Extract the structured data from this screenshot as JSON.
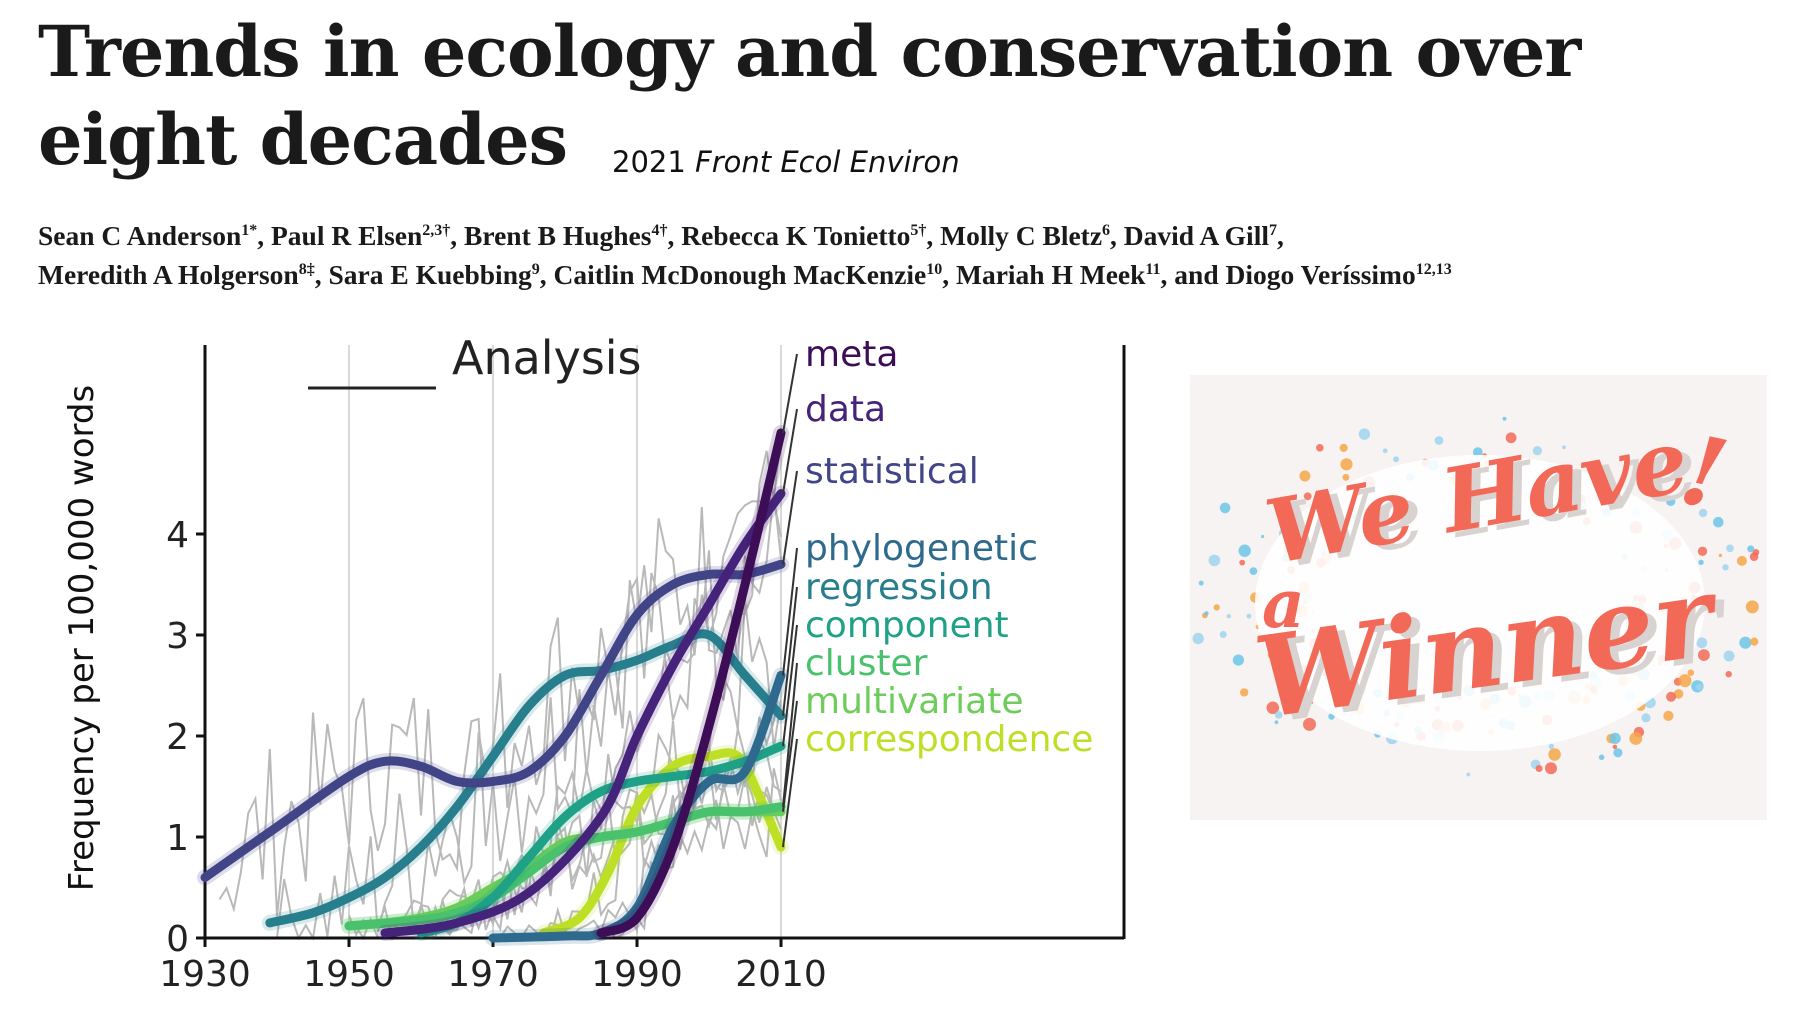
{
  "header": {
    "title": "Trends in ecology and conservation over eight decades",
    "journal_year": "2021",
    "journal_name": "Front Ecol Environ"
  },
  "authors": [
    {
      "name": "Sean C Anderson",
      "sup": "1*"
    },
    {
      "name": "Paul R Elsen",
      "sup": "2,3†"
    },
    {
      "name": "Brent B Hughes",
      "sup": "4†"
    },
    {
      "name": "Rebecca K Tonietto",
      "sup": "5†"
    },
    {
      "name": "Molly C Bletz",
      "sup": "6"
    },
    {
      "name": "David A Gill",
      "sup": "7"
    },
    {
      "name": "Meredith A Holgerson",
      "sup": "8‡"
    },
    {
      "name": "Sara E Kuebbing",
      "sup": "9"
    },
    {
      "name": "Caitlin McDonough MacKenzie",
      "sup": "10"
    },
    {
      "name": "Mariah H Meek",
      "sup": "11"
    },
    {
      "name": "Diogo Veríssimo",
      "sup": "12,13"
    }
  ],
  "badge": {
    "line1": "We Have",
    "line2": "a",
    "line3": "Winner",
    "mark": "!",
    "colors": {
      "text": "#f26a57",
      "shadow": "#d8d2d0",
      "dots": [
        "#f26a57",
        "#6cc5e8",
        "#f4a64a",
        "#9fd3ef"
      ]
    }
  },
  "chart_data": {
    "type": "line",
    "title": "Analysis",
    "xlabel": "",
    "ylabel": "Frequency per 100,000 words",
    "xlim": [
      1930,
      2020
    ],
    "ylim": [
      0,
      5.7
    ],
    "xticks": [
      1930,
      1950,
      1970,
      1990,
      2010
    ],
    "yticks": [
      0,
      1,
      2,
      3,
      4
    ],
    "vertical_grid": [
      1950,
      1970,
      1990,
      2010
    ],
    "legend_placement": "right-end labels",
    "series": [
      {
        "name": "meta",
        "color": "#3d0e57",
        "x": [
          1985,
          1990,
          1995,
          2000,
          2005,
          2010
        ],
        "y": [
          0.05,
          0.2,
          0.9,
          2.1,
          3.5,
          5.0
        ]
      },
      {
        "name": "data",
        "color": "#46237a",
        "x": [
          1955,
          1965,
          1975,
          1985,
          1990,
          1995,
          2000,
          2005,
          2010
        ],
        "y": [
          0.05,
          0.15,
          0.45,
          1.2,
          2.0,
          2.7,
          3.3,
          3.9,
          4.4
        ]
      },
      {
        "name": "statistical",
        "color": "#414487",
        "x": [
          1930,
          1940,
          1950,
          1955,
          1960,
          1965,
          1970,
          1975,
          1980,
          1985,
          1990,
          1995,
          2000,
          2005,
          2010
        ],
        "y": [
          0.6,
          1.1,
          1.6,
          1.75,
          1.7,
          1.55,
          1.55,
          1.65,
          2.0,
          2.6,
          3.2,
          3.5,
          3.6,
          3.6,
          3.7
        ]
      },
      {
        "name": "phylogenetic",
        "color": "#2e6a8e",
        "x": [
          1970,
          1980,
          1985,
          1990,
          1995,
          2000,
          2005,
          2010
        ],
        "y": [
          0.0,
          0.02,
          0.05,
          0.3,
          1.1,
          1.55,
          1.65,
          2.6
        ]
      },
      {
        "name": "regression",
        "color": "#277f8e",
        "x": [
          1939,
          1945,
          1950,
          1955,
          1960,
          1965,
          1970,
          1975,
          1980,
          1985,
          1990,
          1995,
          2000,
          2005,
          2010
        ],
        "y": [
          0.15,
          0.25,
          0.4,
          0.6,
          0.9,
          1.3,
          1.8,
          2.3,
          2.6,
          2.65,
          2.75,
          2.9,
          3.0,
          2.6,
          2.2
        ]
      },
      {
        "name": "component",
        "color": "#1fa187",
        "x": [
          1960,
          1965,
          1970,
          1975,
          1980,
          1985,
          1990,
          1995,
          2000,
          2005,
          2010
        ],
        "y": [
          0.05,
          0.15,
          0.4,
          0.8,
          1.2,
          1.45,
          1.55,
          1.6,
          1.65,
          1.75,
          1.9
        ]
      },
      {
        "name": "cluster",
        "color": "#4ac16d",
        "x": [
          1950,
          1960,
          1965,
          1970,
          1975,
          1980,
          1985,
          1990,
          1995,
          2000,
          2005,
          2010
        ],
        "y": [
          0.12,
          0.18,
          0.25,
          0.4,
          0.65,
          0.9,
          1.0,
          1.05,
          1.15,
          1.25,
          1.25,
          1.3
        ]
      },
      {
        "name": "multivariate",
        "color": "#6ecd5a",
        "x": [
          1950,
          1955,
          1960,
          1965,
          1970,
          1975,
          1980,
          1985,
          1990,
          1995,
          2000,
          2005,
          2010
        ],
        "y": [
          0.12,
          0.15,
          0.2,
          0.3,
          0.5,
          0.7,
          0.95,
          1.0,
          1.05,
          1.15,
          1.25,
          1.25,
          1.25
        ]
      },
      {
        "name": "correspondence",
        "color": "#bddf26",
        "x": [
          1977,
          1982,
          1986,
          1990,
          1995,
          2000,
          2004,
          2007,
          2010
        ],
        "y": [
          0.05,
          0.2,
          0.65,
          1.3,
          1.7,
          1.8,
          1.8,
          1.4,
          0.9
        ]
      }
    ]
  }
}
